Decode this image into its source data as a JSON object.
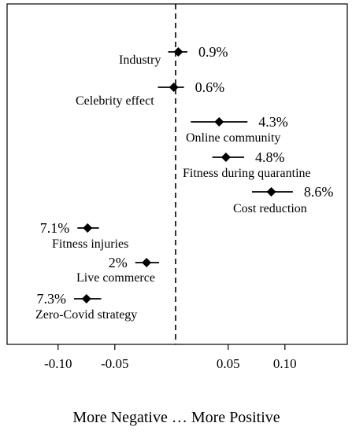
{
  "chart_data": {
    "type": "scatter",
    "title": "",
    "xlabel": "More Negative … More Positive",
    "ylabel": "",
    "xlim": [
      -0.145,
      0.155
    ],
    "xticks": [
      -0.1,
      -0.05,
      0.05,
      0.1
    ],
    "xtick_labels": [
      "-0.10",
      "-0.05",
      "0.05",
      "0.10"
    ],
    "reference_line": {
      "x": 0,
      "style": "dashed"
    },
    "grid": false,
    "legend": "none",
    "colors": {
      "points": "#000000",
      "axes": "#000000",
      "background": "#ffffff"
    },
    "points": [
      {
        "topic": "Industry",
        "estimate": 0.006,
        "ci": [
          -0.003,
          0.014
        ],
        "share": "0.9%"
      },
      {
        "topic": "Celebrity effect",
        "estimate": 0.002,
        "ci": [
          -0.012,
          0.011
        ],
        "share": "0.6%"
      },
      {
        "topic": "Online community",
        "estimate": 0.042,
        "ci": [
          0.017,
          0.067
        ],
        "share": "4.3%"
      },
      {
        "topic": "Fitness during quarantine",
        "estimate": 0.048,
        "ci": [
          0.036,
          0.064
        ],
        "share": "4.8%"
      },
      {
        "topic": "Cost reduction",
        "estimate": 0.088,
        "ci": [
          0.071,
          0.107
        ],
        "share": "8.6%"
      },
      {
        "topic": "Fitness injuries",
        "estimate": -0.074,
        "ci": [
          -0.083,
          -0.064
        ],
        "share": "7.1%"
      },
      {
        "topic": "Live commerce",
        "estimate": -0.022,
        "ci": [
          -0.032,
          -0.011
        ],
        "share": "2%"
      },
      {
        "topic": "Zero-Covid strategy",
        "estimate": -0.075,
        "ci": [
          -0.086,
          -0.062
        ],
        "share": "7.3%"
      }
    ]
  }
}
